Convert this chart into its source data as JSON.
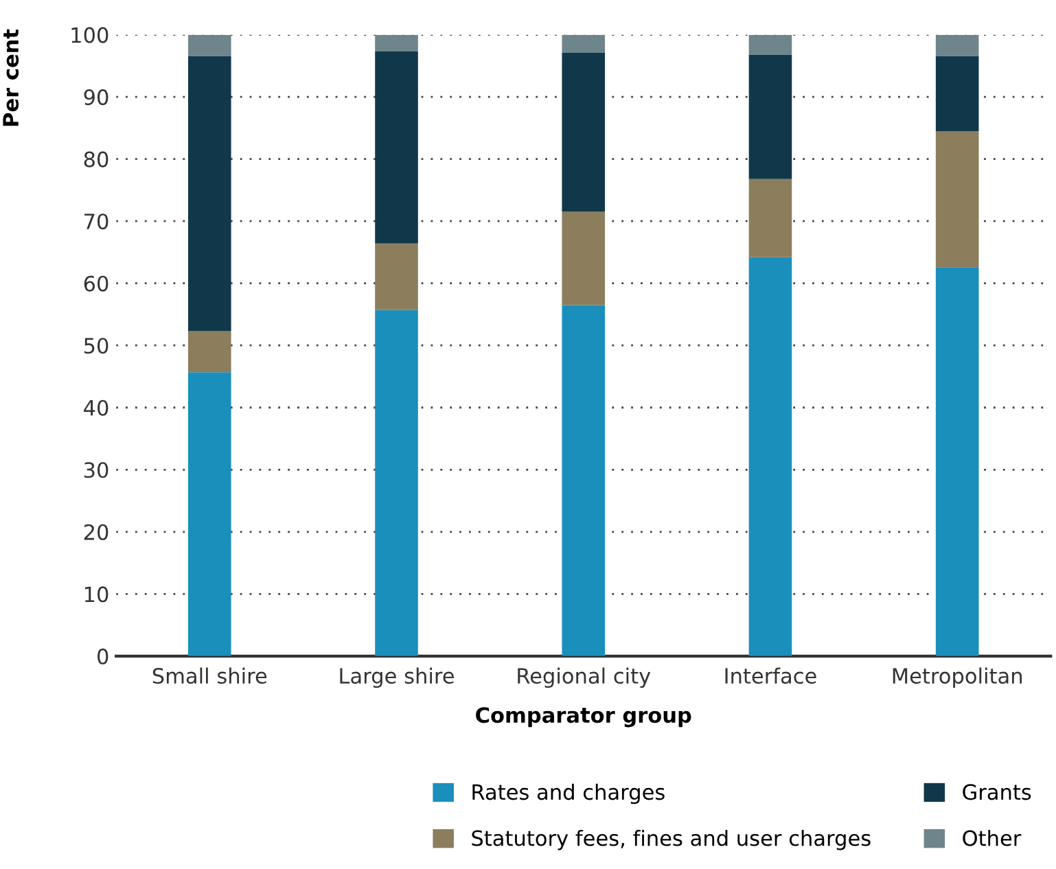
{
  "chart_data": {
    "type": "bar",
    "stacked": true,
    "xlabel": "Comparator group",
    "ylabel": "Per cent",
    "categories": [
      "Small shire",
      "Large shire",
      "Regional city",
      "Interface",
      "Metropolitan"
    ],
    "series": [
      {
        "name": "Rates and charges",
        "color": "#1a8fbb",
        "values": [
          45.7,
          55.7,
          56.5,
          64.2,
          62.6
        ]
      },
      {
        "name": "Statutory fees, fines and user charges",
        "color": "#8c7d5c",
        "values": [
          6.6,
          10.7,
          15.0,
          12.6,
          21.9
        ]
      },
      {
        "name": "Grants",
        "color": "#11384a",
        "values": [
          44.3,
          30.9,
          25.6,
          20.0,
          12.1
        ]
      },
      {
        "name": "Other",
        "color": "#6e858b",
        "values": [
          3.4,
          2.7,
          2.9,
          3.2,
          3.4
        ]
      }
    ],
    "ylim": [
      0,
      100
    ],
    "yticks": [
      0,
      10,
      20,
      30,
      40,
      50,
      60,
      70,
      80,
      90,
      100
    ],
    "grid": "y",
    "legend": "bottom right"
  }
}
